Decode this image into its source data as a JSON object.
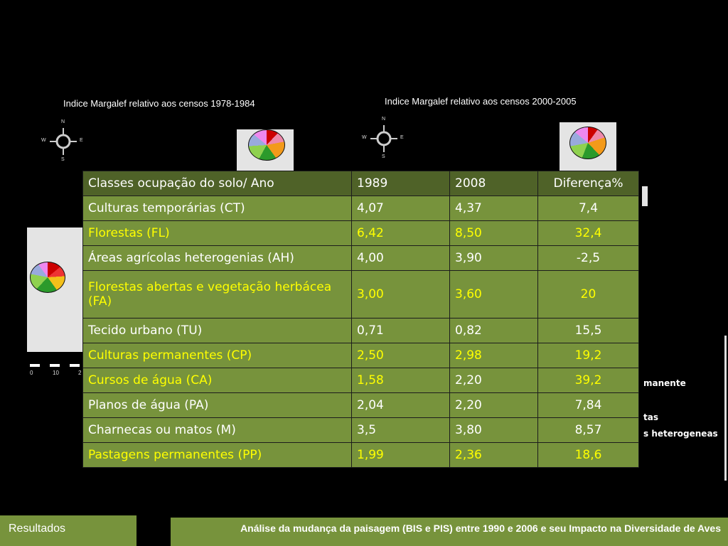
{
  "maps": {
    "left_title": "Indice Margalef relativo aos censos 1978-1984",
    "right_title": "Indice Margalef relativo aos censos 2000-2005",
    "compass": {
      "n": "N",
      "s": "S",
      "e": "E",
      "w": "W"
    },
    "scale_ticks": [
      "0",
      "10",
      "2"
    ]
  },
  "legend_fragments": [
    "manente",
    "tas",
    "s heterogeneas"
  ],
  "table": {
    "headers": [
      "Classes ocupação do solo/ Ano",
      "1989",
      "2008",
      "Diferença%"
    ],
    "rows": [
      {
        "classe": "Culturas temporárias (CT)",
        "y1989": "4,07",
        "y2008": "4,37",
        "dif": "7,4"
      },
      {
        "classe": "Florestas (FL)",
        "y1989": "6,42",
        "y2008": "8,50",
        "dif": "32,4"
      },
      {
        "classe": "Áreas agrícolas heterogenias (AH)",
        "y1989": "4,00",
        "y2008": "3,90",
        "dif": "-2,5"
      },
      {
        "classe": "Florestas abertas e vegetação herbácea (FA)",
        "y1989": "3,00",
        "y2008": "3,60",
        "dif": "20"
      },
      {
        "classe": "Tecido urbano (TU)",
        "y1989": "0,71",
        "y2008": "0,82",
        "dif": "15,5"
      },
      {
        "classe": "Culturas permanentes (CP)",
        "y1989": "2,50",
        "y2008": "2,98",
        "dif": "19,2"
      },
      {
        "classe": "Cursos de água (CA)",
        "y1989": "1,58",
        "y2008": "2,20",
        "dif": "39,2"
      },
      {
        "classe": "Planos de água (PA)",
        "y1989": "2,04",
        "y2008": "2,20",
        "dif": "7,84"
      },
      {
        "classe": "Charnecas ou matos (M)",
        "y1989": "3,5",
        "y2008": "3,80",
        "dif": "8,57"
      },
      {
        "classe": "Pastagens permanentes (PP)",
        "y1989": "1,99",
        "y2008": "2,36",
        "dif": "18,6"
      }
    ]
  },
  "footer": {
    "section": "Resultados",
    "title": "Análise da mudança da paisagem (BIS e PIS) entre 1990 e 2006 e seu Impacto na Diversidade de Aves"
  },
  "colors": {
    "table_bg": "#77933c",
    "header_bg": "#4f6228",
    "highlight_text": "#ffff00",
    "footer_bg": "#77933c"
  }
}
